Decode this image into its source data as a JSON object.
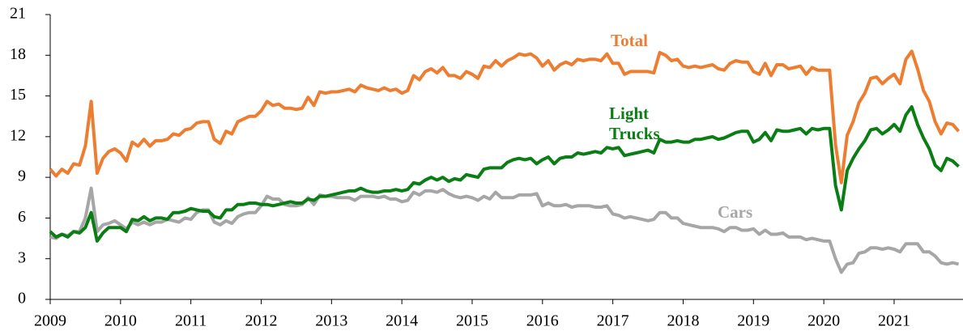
{
  "chart_data": {
    "type": "line",
    "x": [
      2009,
      2009.083,
      2009.167,
      2009.25,
      2009.333,
      2009.417,
      2009.5,
      2009.583,
      2009.667,
      2009.75,
      2009.833,
      2009.917,
      2010,
      2010.083,
      2010.167,
      2010.25,
      2010.333,
      2010.417,
      2010.5,
      2010.583,
      2010.667,
      2010.75,
      2010.833,
      2010.917,
      2011,
      2011.083,
      2011.167,
      2011.25,
      2011.333,
      2011.417,
      2011.5,
      2011.583,
      2011.667,
      2011.75,
      2011.833,
      2011.917,
      2012,
      2012.083,
      2012.167,
      2012.25,
      2012.333,
      2012.417,
      2012.5,
      2012.583,
      2012.667,
      2012.75,
      2012.833,
      2012.917,
      2013,
      2013.083,
      2013.167,
      2013.25,
      2013.333,
      2013.417,
      2013.5,
      2013.583,
      2013.667,
      2013.75,
      2013.833,
      2013.917,
      2014,
      2014.083,
      2014.167,
      2014.25,
      2014.333,
      2014.417,
      2014.5,
      2014.583,
      2014.667,
      2014.75,
      2014.833,
      2014.917,
      2015,
      2015.083,
      2015.167,
      2015.25,
      2015.333,
      2015.417,
      2015.5,
      2015.583,
      2015.667,
      2015.75,
      2015.833,
      2015.917,
      2016,
      2016.083,
      2016.167,
      2016.25,
      2016.333,
      2016.417,
      2016.5,
      2016.583,
      2016.667,
      2016.75,
      2016.833,
      2016.917,
      2017,
      2017.083,
      2017.167,
      2017.25,
      2017.333,
      2017.417,
      2017.5,
      2017.583,
      2017.667,
      2017.75,
      2017.833,
      2017.917,
      2018,
      2018.083,
      2018.167,
      2018.25,
      2018.333,
      2018.417,
      2018.5,
      2018.583,
      2018.667,
      2018.75,
      2018.833,
      2018.917,
      2019,
      2019.083,
      2019.167,
      2019.25,
      2019.333,
      2019.417,
      2019.5,
      2019.583,
      2019.667,
      2019.75,
      2019.833,
      2019.917,
      2020,
      2020.083,
      2020.167,
      2020.25,
      2020.333,
      2020.417,
      2020.5,
      2020.583,
      2020.667,
      2020.75,
      2020.833,
      2020.917,
      2021,
      2021.083,
      2021.167,
      2021.25,
      2021.333,
      2021.417,
      2021.5,
      2021.583,
      2021.667,
      2021.75,
      2021.833,
      2021.917
    ],
    "series": [
      {
        "name": "Total",
        "color": "#ed7d31",
        "values": [
          9.6,
          9.1,
          9.6,
          9.3,
          10.0,
          9.9,
          11.3,
          14.6,
          9.3,
          10.4,
          10.9,
          11.1,
          10.8,
          10.2,
          11.6,
          11.3,
          11.8,
          11.3,
          11.7,
          11.7,
          11.8,
          12.2,
          12.1,
          12.5,
          12.6,
          13.0,
          13.1,
          13.1,
          11.8,
          11.5,
          12.4,
          12.2,
          13.1,
          13.3,
          13.5,
          13.5,
          13.9,
          14.6,
          14.3,
          14.4,
          14.1,
          14.1,
          14.0,
          14.1,
          14.9,
          14.3,
          15.3,
          15.2,
          15.3,
          15.3,
          15.4,
          15.5,
          15.3,
          15.8,
          15.6,
          15.5,
          15.4,
          15.6,
          15.4,
          15.5,
          15.2,
          15.4,
          16.5,
          16.2,
          16.8,
          17.0,
          16.7,
          17.1,
          16.5,
          16.5,
          16.3,
          16.8,
          16.6,
          16.3,
          17.2,
          17.1,
          17.6,
          17.2,
          17.6,
          17.8,
          18.1,
          18.0,
          18.1,
          17.8,
          17.2,
          17.6,
          16.9,
          17.3,
          17.5,
          17.3,
          17.7,
          17.6,
          17.7,
          17.7,
          17.6,
          18.1,
          17.4,
          17.4,
          16.6,
          16.8,
          16.8,
          16.8,
          16.8,
          16.7,
          18.2,
          18.0,
          17.6,
          17.7,
          17.2,
          17.1,
          17.2,
          17.1,
          17.2,
          17.3,
          17.0,
          16.9,
          17.4,
          17.6,
          17.5,
          17.5,
          16.8,
          16.6,
          17.4,
          16.5,
          17.3,
          17.3,
          17.0,
          17.1,
          17.2,
          16.6,
          17.1,
          16.9,
          16.9,
          16.9,
          11.4,
          8.6,
          12.1,
          13.1,
          14.5,
          15.2,
          16.3,
          16.4,
          15.9,
          16.3,
          16.6,
          15.9,
          17.7,
          18.3,
          17.0,
          15.4,
          14.6,
          13.1,
          12.2,
          13.0,
          12.9,
          12.4
        ]
      },
      {
        "name": "Light Trucks",
        "color": "#0a7d14",
        "values": [
          5.0,
          4.6,
          4.8,
          4.6,
          5.0,
          4.9,
          5.3,
          6.4,
          4.3,
          4.9,
          5.3,
          5.3,
          5.3,
          5.0,
          5.9,
          5.8,
          6.1,
          5.8,
          6.0,
          6.0,
          5.9,
          6.4,
          6.4,
          6.5,
          6.7,
          6.6,
          6.5,
          6.5,
          6.1,
          6.0,
          6.6,
          6.6,
          7.0,
          7.0,
          7.1,
          7.1,
          7.0,
          7.0,
          6.9,
          7.0,
          7.1,
          7.2,
          7.1,
          7.1,
          7.4,
          7.3,
          7.6,
          7.6,
          7.7,
          7.8,
          7.9,
          8.0,
          8.0,
          8.2,
          8.0,
          7.9,
          7.9,
          8.0,
          8.0,
          8.1,
          8.0,
          8.1,
          8.6,
          8.5,
          8.8,
          9.0,
          8.8,
          9.0,
          8.7,
          8.9,
          8.8,
          9.2,
          9.1,
          9.0,
          9.6,
          9.7,
          9.7,
          9.7,
          10.1,
          10.3,
          10.4,
          10.3,
          10.4,
          10.0,
          10.3,
          10.5,
          10.0,
          10.4,
          10.5,
          10.5,
          10.8,
          10.7,
          10.8,
          10.9,
          10.8,
          11.2,
          11.1,
          11.2,
          10.6,
          10.7,
          10.8,
          10.9,
          11.0,
          10.8,
          11.8,
          11.6,
          11.6,
          11.7,
          11.6,
          11.6,
          11.8,
          11.8,
          11.9,
          12.0,
          11.8,
          11.9,
          12.1,
          12.3,
          12.4,
          12.4,
          11.6,
          11.8,
          12.3,
          11.7,
          12.5,
          12.4,
          12.4,
          12.5,
          12.6,
          12.2,
          12.6,
          12.5,
          12.6,
          12.6,
          8.4,
          6.6,
          9.5,
          10.4,
          11.1,
          11.7,
          12.5,
          12.6,
          12.2,
          12.5,
          12.9,
          12.4,
          13.6,
          14.2,
          12.9,
          11.9,
          11.1,
          9.9,
          9.5,
          10.4,
          10.2,
          9.8
        ]
      },
      {
        "name": "Cars",
        "color": "#a6a6a6",
        "values": [
          4.6,
          4.5,
          4.8,
          4.7,
          5.0,
          5.0,
          6.0,
          8.2,
          5.0,
          5.5,
          5.6,
          5.8,
          5.5,
          5.2,
          5.7,
          5.5,
          5.7,
          5.5,
          5.7,
          5.7,
          5.9,
          5.8,
          5.7,
          6.0,
          5.9,
          6.4,
          6.6,
          6.6,
          5.7,
          5.5,
          5.8,
          5.6,
          6.1,
          6.3,
          6.4,
          6.4,
          6.9,
          7.6,
          7.4,
          7.4,
          7.0,
          6.9,
          6.9,
          7.0,
          7.5,
          7.0,
          7.7,
          7.6,
          7.6,
          7.5,
          7.5,
          7.5,
          7.3,
          7.6,
          7.6,
          7.6,
          7.5,
          7.6,
          7.4,
          7.4,
          7.2,
          7.3,
          7.9,
          7.7,
          8.0,
          8.0,
          7.9,
          8.1,
          7.8,
          7.6,
          7.5,
          7.6,
          7.5,
          7.3,
          7.6,
          7.4,
          7.9,
          7.5,
          7.5,
          7.5,
          7.7,
          7.7,
          7.7,
          7.8,
          6.9,
          7.1,
          6.9,
          6.9,
          7.0,
          6.8,
          6.9,
          6.9,
          6.9,
          6.8,
          6.8,
          6.9,
          6.3,
          6.2,
          6.0,
          6.1,
          6.0,
          5.9,
          5.8,
          5.9,
          6.4,
          6.4,
          6.0,
          6.0,
          5.6,
          5.5,
          5.4,
          5.3,
          5.3,
          5.3,
          5.2,
          5.0,
          5.3,
          5.3,
          5.1,
          5.1,
          5.2,
          4.8,
          5.1,
          4.8,
          4.8,
          4.9,
          4.6,
          4.6,
          4.6,
          4.4,
          4.5,
          4.4,
          4.3,
          4.3,
          3.0,
          2.0,
          2.6,
          2.7,
          3.4,
          3.5,
          3.8,
          3.8,
          3.7,
          3.8,
          3.7,
          3.5,
          4.1,
          4.1,
          4.1,
          3.5,
          3.5,
          3.2,
          2.7,
          2.6,
          2.7,
          2.6
        ]
      }
    ],
    "xlim": [
      2009,
      2021.96
    ],
    "xticks": [
      2009,
      2010,
      2011,
      2012,
      2013,
      2014,
      2015,
      2016,
      2017,
      2018,
      2019,
      2020,
      2021
    ],
    "ylim": [
      0,
      21
    ],
    "yticks": [
      0,
      3,
      6,
      9,
      12,
      15,
      18,
      21
    ],
    "grid": false
  }
}
